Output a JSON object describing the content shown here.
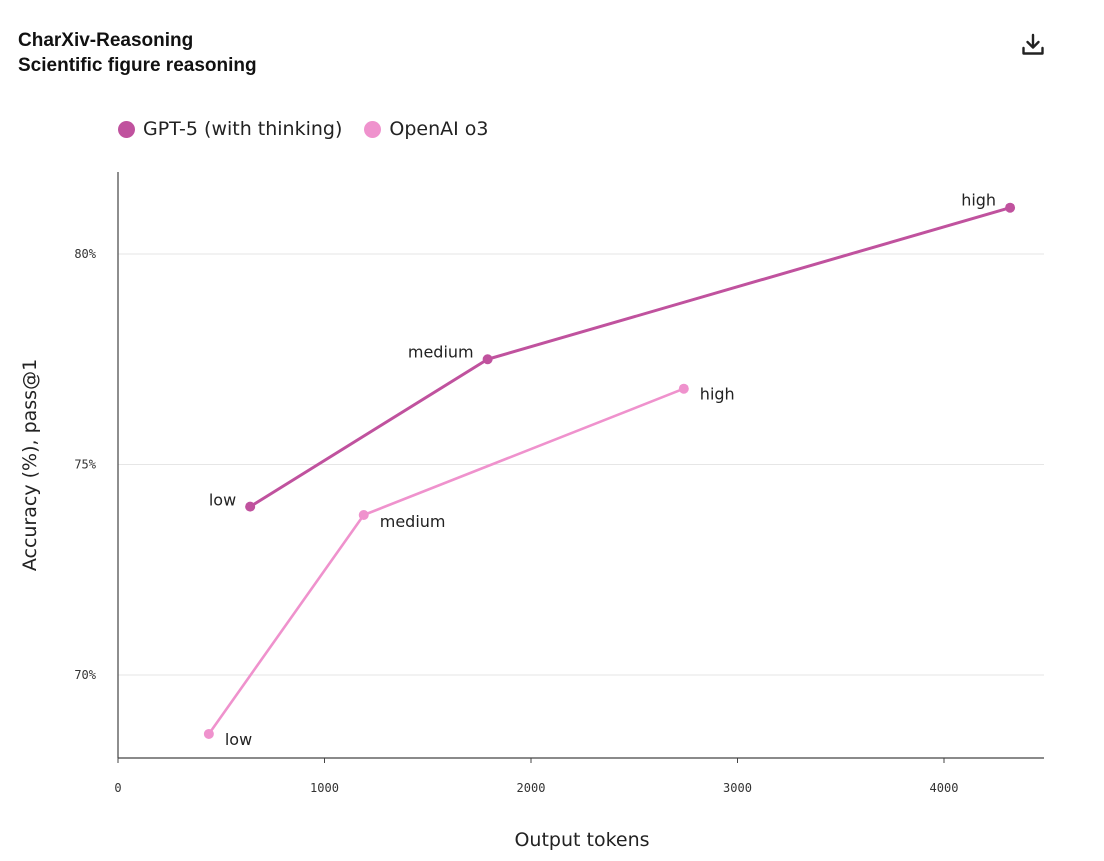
{
  "header": {
    "title": "CharXiv-Reasoning",
    "subtitle": "Scientific figure reasoning"
  },
  "toolbar": {
    "download_icon": "download-icon"
  },
  "chart_data": {
    "type": "line",
    "title": "CharXiv-Reasoning",
    "subtitle": "Scientific figure reasoning",
    "xlabel": "Output tokens",
    "ylabel": "Accuracy (%), pass@1",
    "xlim": [
      0,
      4500
    ],
    "ylim": [
      68,
      82
    ],
    "x_ticks": [
      0,
      1000,
      2000,
      3000,
      4000
    ],
    "x_tick_labels": [
      "0",
      "1000",
      "2000",
      "3000",
      "4000"
    ],
    "y_ticks": [
      70,
      75,
      80
    ],
    "y_tick_labels": [
      "70%",
      "75%",
      "80%"
    ],
    "grid": "horizontal",
    "legend_position": "top-left",
    "series": [
      {
        "name": "GPT-5 (with thinking)",
        "color": "#c0529e",
        "points": [
          {
            "x": 640,
            "y": 74.0,
            "label": "low"
          },
          {
            "x": 1790,
            "y": 77.5,
            "label": "medium"
          },
          {
            "x": 4320,
            "y": 81.1,
            "label": "high"
          }
        ]
      },
      {
        "name": "OpenAI o3",
        "color": "#ef92cd",
        "points": [
          {
            "x": 440,
            "y": 68.6,
            "label": "low"
          },
          {
            "x": 1190,
            "y": 73.8,
            "label": "medium"
          },
          {
            "x": 2740,
            "y": 76.8,
            "label": "high"
          }
        ]
      }
    ]
  }
}
